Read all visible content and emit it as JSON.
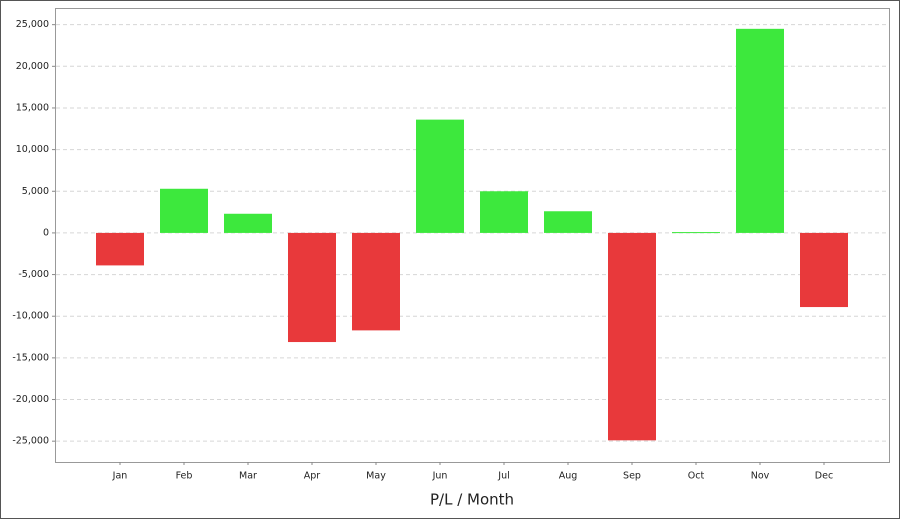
{
  "chart_data": {
    "type": "bar",
    "x_label": "P/L / Month",
    "categories": [
      "Jan",
      "Feb",
      "Mar",
      "Apr",
      "May",
      "Jun",
      "Jul",
      "Aug",
      "Sep",
      "Oct",
      "Nov",
      "Dec"
    ],
    "values": [
      -3900,
      5300,
      2300,
      -13100,
      -11700,
      13600,
      5000,
      2600,
      -24900,
      100,
      24500,
      -8900
    ],
    "positive_color": "#3de83d",
    "negative_color": "#e8393b",
    "ylim": [
      -27500,
      27000
    ],
    "yticks": [
      {
        "value": -25000,
        "label": "-25,000"
      },
      {
        "value": -20000,
        "label": "-20,000"
      },
      {
        "value": -15000,
        "label": "-15,000"
      },
      {
        "value": -10000,
        "label": "-10,000"
      },
      {
        "value": -5000,
        "label": "-5,000"
      },
      0,
      {
        "value": 5000,
        "label": "5,000"
      },
      {
        "value": 10000,
        "label": "10,000"
      },
      {
        "value": 15000,
        "label": "15,000"
      },
      {
        "value": 20000,
        "label": "20,000"
      },
      {
        "value": 25000,
        "label": "25,000"
      }
    ],
    "grid": true
  }
}
